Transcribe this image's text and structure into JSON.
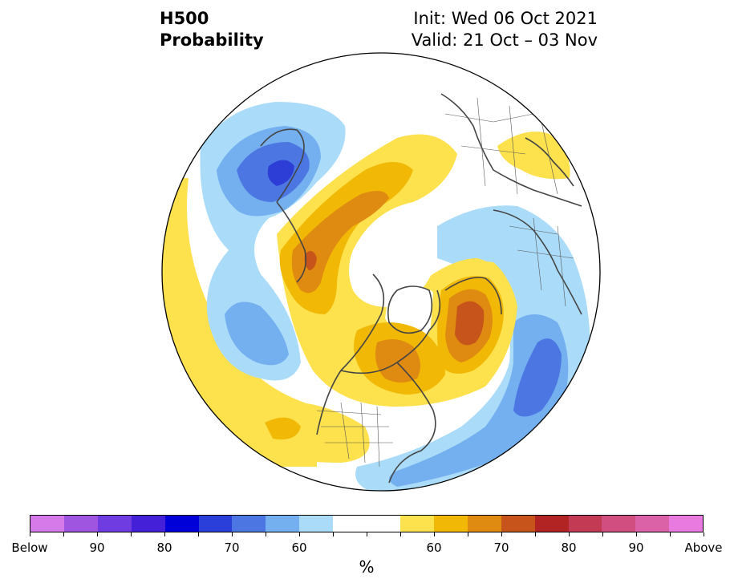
{
  "title": {
    "line1": "H500",
    "line2": "Probability",
    "init": "Init: Wed 06 Oct 2021",
    "valid": "Valid: 21 Oct – 03 Nov"
  },
  "map": {
    "projection": "north-polar-stereographic",
    "colors": {
      "below_60": "#aadcf9",
      "below_70": "#74b0f0",
      "below_80": "#4c77e2",
      "below_90": "#2d3ed6",
      "above_60": "#fde14d",
      "above_70": "#f1b906",
      "above_80": "#df8a10",
      "above_90": "#c7541a"
    }
  },
  "colorbar": {
    "colors": [
      "#d57ae8",
      "#a055e0",
      "#6e3ce0",
      "#4420d8",
      "#0000d8",
      "#2a3ed9",
      "#4c77e2",
      "#74b0f0",
      "#aadcf9",
      "#ffffff",
      "#ffffff",
      "#fde14d",
      "#f1b906",
      "#df8a10",
      "#c7541a",
      "#b22424",
      "#c33a54",
      "#d04e80",
      "#db62a6",
      "#e97ae0"
    ],
    "tick_labels": [
      {
        "label": "Below",
        "index": 0
      },
      {
        "label": "90",
        "index": 2
      },
      {
        "label": "80",
        "index": 4
      },
      {
        "label": "70",
        "index": 6
      },
      {
        "label": "60",
        "index": 8
      },
      {
        "label": "60",
        "index": 12
      },
      {
        "label": "70",
        "index": 14
      },
      {
        "label": "80",
        "index": 16
      },
      {
        "label": "90",
        "index": 18
      },
      {
        "label": "Above",
        "index": 20
      }
    ],
    "unit": "%"
  }
}
